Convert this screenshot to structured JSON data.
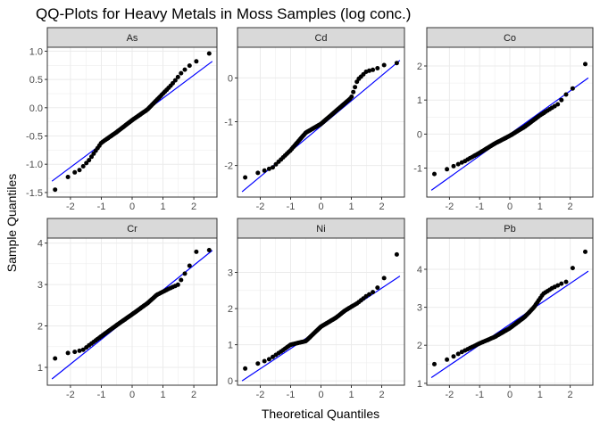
{
  "title": "QQ-Plots for Heavy Metals in Moss Samples (log conc.)",
  "xlabel": "Theoretical Quantiles",
  "ylabel": "Sample Quantiles",
  "colors": {
    "points": "#000000",
    "reference_line": "#0000ff",
    "strip": "#d9d9d9",
    "grid": "#ebebeb"
  },
  "chart_data": [
    {
      "type": "scatter",
      "panel": "As",
      "xlim": [
        -2.75,
        2.75
      ],
      "ylim": [
        -1.58,
        1.07
      ],
      "xticks": [
        -2,
        -1,
        0,
        1,
        2
      ],
      "xtick_labels": [
        "-2",
        "-1",
        "0",
        "1",
        "2"
      ],
      "yticks": [
        -1.5,
        -1.0,
        -0.5,
        0.0,
        0.5,
        1.0
      ],
      "ytick_labels": [
        "-1.5",
        "-1.0",
        "-0.5",
        "0.0",
        "0.5",
        "1.0"
      ],
      "reference_line": {
        "x": [
          -2.6,
          2.6
        ],
        "y": [
          -1.3,
          0.82
        ]
      },
      "anchors": [
        [
          -2.6,
          -1.5
        ],
        [
          -2.3,
          -1.35
        ],
        [
          -2.0,
          -1.18
        ],
        [
          -1.7,
          -1.1
        ],
        [
          -1.4,
          -0.93
        ],
        [
          -1.0,
          -0.62
        ],
        [
          -0.5,
          -0.43
        ],
        [
          0.0,
          -0.22
        ],
        [
          0.5,
          -0.03
        ],
        [
          1.0,
          0.25
        ],
        [
          1.3,
          0.42
        ],
        [
          1.6,
          0.62
        ],
        [
          1.8,
          0.72
        ],
        [
          2.0,
          0.8
        ],
        [
          2.2,
          0.85
        ],
        [
          2.5,
          0.96
        ]
      ]
    },
    {
      "type": "scatter",
      "panel": "Cd",
      "xlim": [
        -2.75,
        2.75
      ],
      "ylim": [
        -2.72,
        0.7
      ],
      "xticks": [
        -2,
        -1,
        0,
        1,
        2
      ],
      "xtick_labels": [
        "-2",
        "-1",
        "0",
        "1",
        "2"
      ],
      "yticks": [
        -2,
        -1,
        0
      ],
      "ytick_labels": [
        "-2",
        "-1",
        "0"
      ],
      "reference_line": {
        "x": [
          -2.6,
          2.6
        ],
        "y": [
          -2.6,
          0.4
        ]
      },
      "anchors": [
        [
          -2.6,
          -2.3
        ],
        [
          -2.3,
          -2.22
        ],
        [
          -2.0,
          -2.15
        ],
        [
          -1.6,
          -2.05
        ],
        [
          -1.0,
          -1.65
        ],
        [
          -0.5,
          -1.25
        ],
        [
          0.0,
          -1.05
        ],
        [
          0.5,
          -0.75
        ],
        [
          1.0,
          -0.45
        ],
        [
          1.2,
          -0.05
        ],
        [
          1.5,
          0.15
        ],
        [
          1.8,
          0.2
        ],
        [
          2.1,
          0.3
        ],
        [
          2.6,
          0.35
        ]
      ]
    },
    {
      "type": "scatter",
      "panel": "Co",
      "xlim": [
        -2.75,
        2.75
      ],
      "ylim": [
        -1.85,
        2.55
      ],
      "xticks": [
        -2,
        -1,
        0,
        1,
        2
      ],
      "xtick_labels": [
        "-2",
        "-1",
        "0",
        "1",
        "2"
      ],
      "yticks": [
        -1,
        0,
        1,
        2
      ],
      "ytick_labels": [
        "-1",
        "0",
        "1",
        "2"
      ],
      "reference_line": {
        "x": [
          -2.6,
          2.6
        ],
        "y": [
          -1.65,
          1.65
        ]
      },
      "anchors": [
        [
          -2.6,
          -1.2
        ],
        [
          -2.3,
          -1.12
        ],
        [
          -2.0,
          -1.0
        ],
        [
          -1.5,
          -0.8
        ],
        [
          -1.0,
          -0.55
        ],
        [
          -0.5,
          -0.28
        ],
        [
          0.0,
          -0.05
        ],
        [
          0.5,
          0.22
        ],
        [
          1.0,
          0.55
        ],
        [
          1.3,
          0.72
        ],
        [
          1.6,
          0.88
        ],
        [
          1.8,
          1.1
        ],
        [
          2.0,
          1.3
        ],
        [
          2.2,
          1.4
        ],
        [
          2.6,
          2.28
        ]
      ]
    },
    {
      "type": "scatter",
      "panel": "Cr",
      "xlim": [
        -2.75,
        2.75
      ],
      "ylim": [
        0.57,
        4.12
      ],
      "xticks": [
        -2,
        -1,
        0,
        1,
        2
      ],
      "xtick_labels": [
        "-2",
        "-1",
        "0",
        "1",
        "2"
      ],
      "yticks": [
        1,
        2,
        3,
        4
      ],
      "ytick_labels": [
        "1",
        "2",
        "3",
        "4"
      ],
      "reference_line": {
        "x": [
          -2.6,
          2.6
        ],
        "y": [
          0.72,
          3.82
        ]
      },
      "anchors": [
        [
          -2.6,
          1.15
        ],
        [
          -2.3,
          1.34
        ],
        [
          -2.0,
          1.35
        ],
        [
          -1.6,
          1.42
        ],
        [
          -1.0,
          1.75
        ],
        [
          -0.5,
          2.02
        ],
        [
          0.0,
          2.28
        ],
        [
          0.5,
          2.55
        ],
        [
          0.8,
          2.75
        ],
        [
          1.2,
          2.9
        ],
        [
          1.5,
          3.0
        ],
        [
          1.7,
          3.25
        ],
        [
          1.9,
          3.5
        ],
        [
          2.0,
          3.78
        ],
        [
          2.2,
          3.8
        ],
        [
          2.6,
          3.84
        ]
      ]
    },
    {
      "type": "scatter",
      "panel": "Ni",
      "xlim": [
        -2.75,
        2.75
      ],
      "ylim": [
        -0.12,
        3.95
      ],
      "xticks": [
        -2,
        -1,
        0,
        1,
        2
      ],
      "xtick_labels": [
        "-2",
        "-1",
        "0",
        "1",
        "2"
      ],
      "yticks": [
        0,
        1,
        2,
        3
      ],
      "ytick_labels": [
        "0",
        "1",
        "2",
        "3"
      ],
      "reference_line": {
        "x": [
          -2.6,
          2.6
        ],
        "y": [
          0.0,
          2.9
        ]
      },
      "anchors": [
        [
          -2.6,
          0.3
        ],
        [
          -2.3,
          0.42
        ],
        [
          -2.0,
          0.5
        ],
        [
          -1.7,
          0.6
        ],
        [
          -1.3,
          0.82
        ],
        [
          -1.0,
          1.0
        ],
        [
          -0.5,
          1.1
        ],
        [
          0.0,
          1.5
        ],
        [
          0.5,
          1.75
        ],
        [
          0.8,
          1.95
        ],
        [
          1.2,
          2.15
        ],
        [
          1.5,
          2.35
        ],
        [
          1.8,
          2.5
        ],
        [
          2.0,
          2.75
        ],
        [
          2.3,
          3.1
        ],
        [
          2.6,
          3.7
        ]
      ]
    },
    {
      "type": "scatter",
      "panel": "Pb",
      "xlim": [
        -2.75,
        2.75
      ],
      "ylim": [
        0.95,
        4.82
      ],
      "xticks": [
        -2,
        -1,
        0,
        1,
        2
      ],
      "xtick_labels": [
        "-2",
        "-1",
        "0",
        "1",
        "2"
      ],
      "yticks": [
        1,
        2,
        3,
        4
      ],
      "ytick_labels": [
        "1",
        "2",
        "3",
        "4"
      ],
      "reference_line": {
        "x": [
          -2.6,
          2.6
        ],
        "y": [
          1.15,
          3.95
        ]
      },
      "anchors": [
        [
          -2.6,
          1.48
        ],
        [
          -2.3,
          1.55
        ],
        [
          -2.0,
          1.65
        ],
        [
          -1.6,
          1.82
        ],
        [
          -1.0,
          2.05
        ],
        [
          -0.5,
          2.22
        ],
        [
          0.0,
          2.45
        ],
        [
          0.5,
          2.75
        ],
        [
          0.8,
          3.0
        ],
        [
          1.1,
          3.35
        ],
        [
          1.4,
          3.5
        ],
        [
          1.7,
          3.62
        ],
        [
          1.9,
          3.68
        ],
        [
          2.0,
          4.02
        ],
        [
          2.2,
          4.05
        ],
        [
          2.6,
          4.6
        ]
      ]
    }
  ]
}
